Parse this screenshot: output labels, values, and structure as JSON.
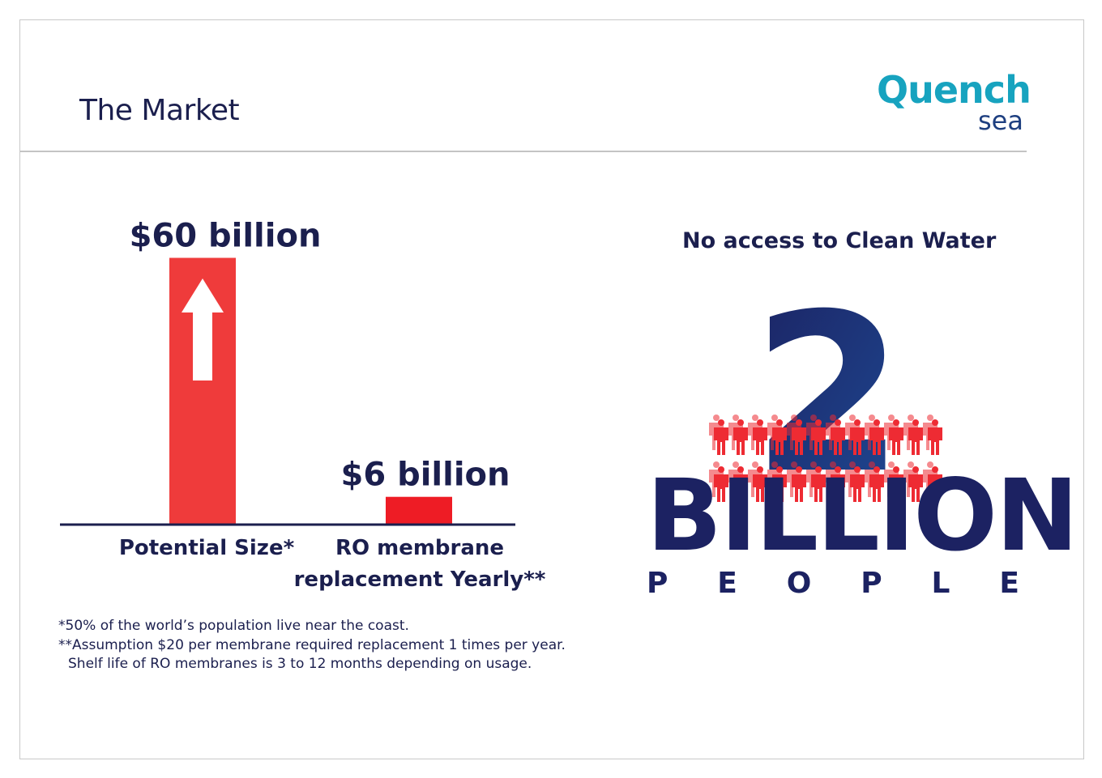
{
  "header": {
    "title": "The Market",
    "logo_line1": "Quench",
    "logo_line2": "sea"
  },
  "chart_data": {
    "type": "bar",
    "categories": [
      "Potential Size*",
      "RO membrane replacement Yearly**"
    ],
    "values": [
      60,
      6
    ],
    "value_labels": [
      "$60 billion",
      "$6 billion"
    ],
    "unit": "billion USD",
    "ylim": [
      0,
      60
    ],
    "colors": [
      "#ef3b3b",
      "#ee1c25"
    ],
    "axis_color": "#1b1f4e",
    "grid": false
  },
  "footnotes": [
    "*50% of the world’s population live near the coast.",
    "**Assumption $20 per membrane required replacement 1 times per year.",
    "Shelf life of RO membranes is 3 to 12 months depending on usage."
  ],
  "infographic": {
    "heading": "No access to Clean Water",
    "number": "2",
    "word": "BILLION",
    "people_letters": [
      "P",
      "E",
      "O",
      "P",
      "L",
      "E"
    ],
    "people_icon": "person-icon",
    "people_color": "#ee2b33",
    "number_color": "#1e3f80"
  }
}
